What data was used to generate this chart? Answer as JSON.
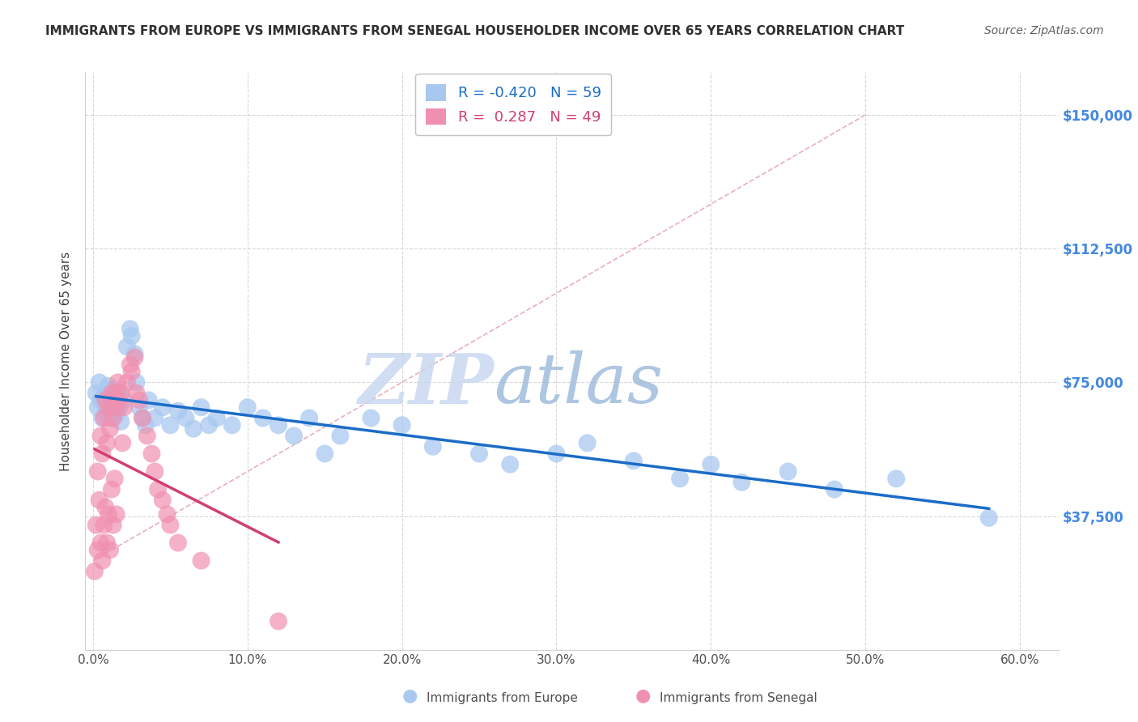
{
  "title": "IMMIGRANTS FROM EUROPE VS IMMIGRANTS FROM SENEGAL HOUSEHOLDER INCOME OVER 65 YEARS CORRELATION CHART",
  "source": "Source: ZipAtlas.com",
  "ylabel": "Householder Income Over 65 years",
  "xlabel_ticks": [
    "0.0%",
    "10.0%",
    "20.0%",
    "30.0%",
    "40.0%",
    "50.0%",
    "60.0%"
  ],
  "xlabel_vals": [
    0.0,
    0.1,
    0.2,
    0.3,
    0.4,
    0.5,
    0.6
  ],
  "ytick_labels": [
    "$150,000",
    "$112,500",
    "$75,000",
    "$37,500"
  ],
  "ytick_vals": [
    150000,
    112500,
    75000,
    37500
  ],
  "ylim": [
    0,
    162000
  ],
  "xlim": [
    -0.005,
    0.625
  ],
  "europe_color": "#a8c8f0",
  "senegal_color": "#f090b0",
  "europe_R": -0.42,
  "europe_N": 59,
  "senegal_R": 0.287,
  "senegal_N": 49,
  "europe_line_color": "#1a6cc8",
  "senegal_line_color": "#d04070",
  "diagonal_color": "#e8b0c0",
  "grid_color": "#d8d8d8",
  "watermark_zip": "ZIP",
  "watermark_atlas": "atlas",
  "watermark_color_zip": "#c8d8f0",
  "watermark_color_atlas": "#a0b8d8",
  "title_color": "#303030",
  "right_tick_color": "#4488e0",
  "europe_x": [
    0.002,
    0.003,
    0.004,
    0.005,
    0.006,
    0.007,
    0.008,
    0.009,
    0.01,
    0.011,
    0.012,
    0.013,
    0.014,
    0.015,
    0.016,
    0.017,
    0.018,
    0.02,
    0.022,
    0.024,
    0.025,
    0.027,
    0.028,
    0.03,
    0.032,
    0.034,
    0.036,
    0.04,
    0.045,
    0.05,
    0.055,
    0.06,
    0.065,
    0.07,
    0.075,
    0.08,
    0.09,
    0.1,
    0.11,
    0.12,
    0.13,
    0.14,
    0.15,
    0.16,
    0.18,
    0.2,
    0.22,
    0.25,
    0.27,
    0.3,
    0.32,
    0.35,
    0.38,
    0.4,
    0.42,
    0.45,
    0.48,
    0.52,
    0.58
  ],
  "europe_y": [
    72000,
    68000,
    75000,
    70000,
    65000,
    71000,
    68000,
    66000,
    74000,
    70000,
    65000,
    73000,
    69000,
    66000,
    72000,
    68000,
    64000,
    70000,
    85000,
    90000,
    88000,
    83000,
    75000,
    68000,
    65000,
    63000,
    70000,
    65000,
    68000,
    63000,
    67000,
    65000,
    62000,
    68000,
    63000,
    65000,
    63000,
    68000,
    65000,
    63000,
    60000,
    65000,
    55000,
    60000,
    65000,
    63000,
    57000,
    55000,
    52000,
    55000,
    58000,
    53000,
    48000,
    52000,
    47000,
    50000,
    45000,
    48000,
    37000
  ],
  "senegal_x": [
    0.001,
    0.002,
    0.003,
    0.003,
    0.004,
    0.005,
    0.005,
    0.006,
    0.006,
    0.007,
    0.007,
    0.008,
    0.008,
    0.009,
    0.009,
    0.01,
    0.01,
    0.011,
    0.011,
    0.012,
    0.012,
    0.013,
    0.013,
    0.014,
    0.014,
    0.015,
    0.015,
    0.016,
    0.017,
    0.018,
    0.019,
    0.02,
    0.022,
    0.024,
    0.025,
    0.027,
    0.028,
    0.03,
    0.032,
    0.035,
    0.038,
    0.04,
    0.042,
    0.045,
    0.048,
    0.05,
    0.055,
    0.07,
    0.12
  ],
  "senegal_y": [
    22000,
    35000,
    50000,
    28000,
    42000,
    60000,
    30000,
    55000,
    25000,
    65000,
    35000,
    70000,
    40000,
    58000,
    30000,
    68000,
    38000,
    62000,
    28000,
    72000,
    45000,
    65000,
    35000,
    72000,
    48000,
    68000,
    38000,
    75000,
    70000,
    72000,
    58000,
    68000,
    75000,
    80000,
    78000,
    82000,
    72000,
    70000,
    65000,
    60000,
    55000,
    50000,
    45000,
    42000,
    38000,
    35000,
    30000,
    25000,
    8000
  ]
}
